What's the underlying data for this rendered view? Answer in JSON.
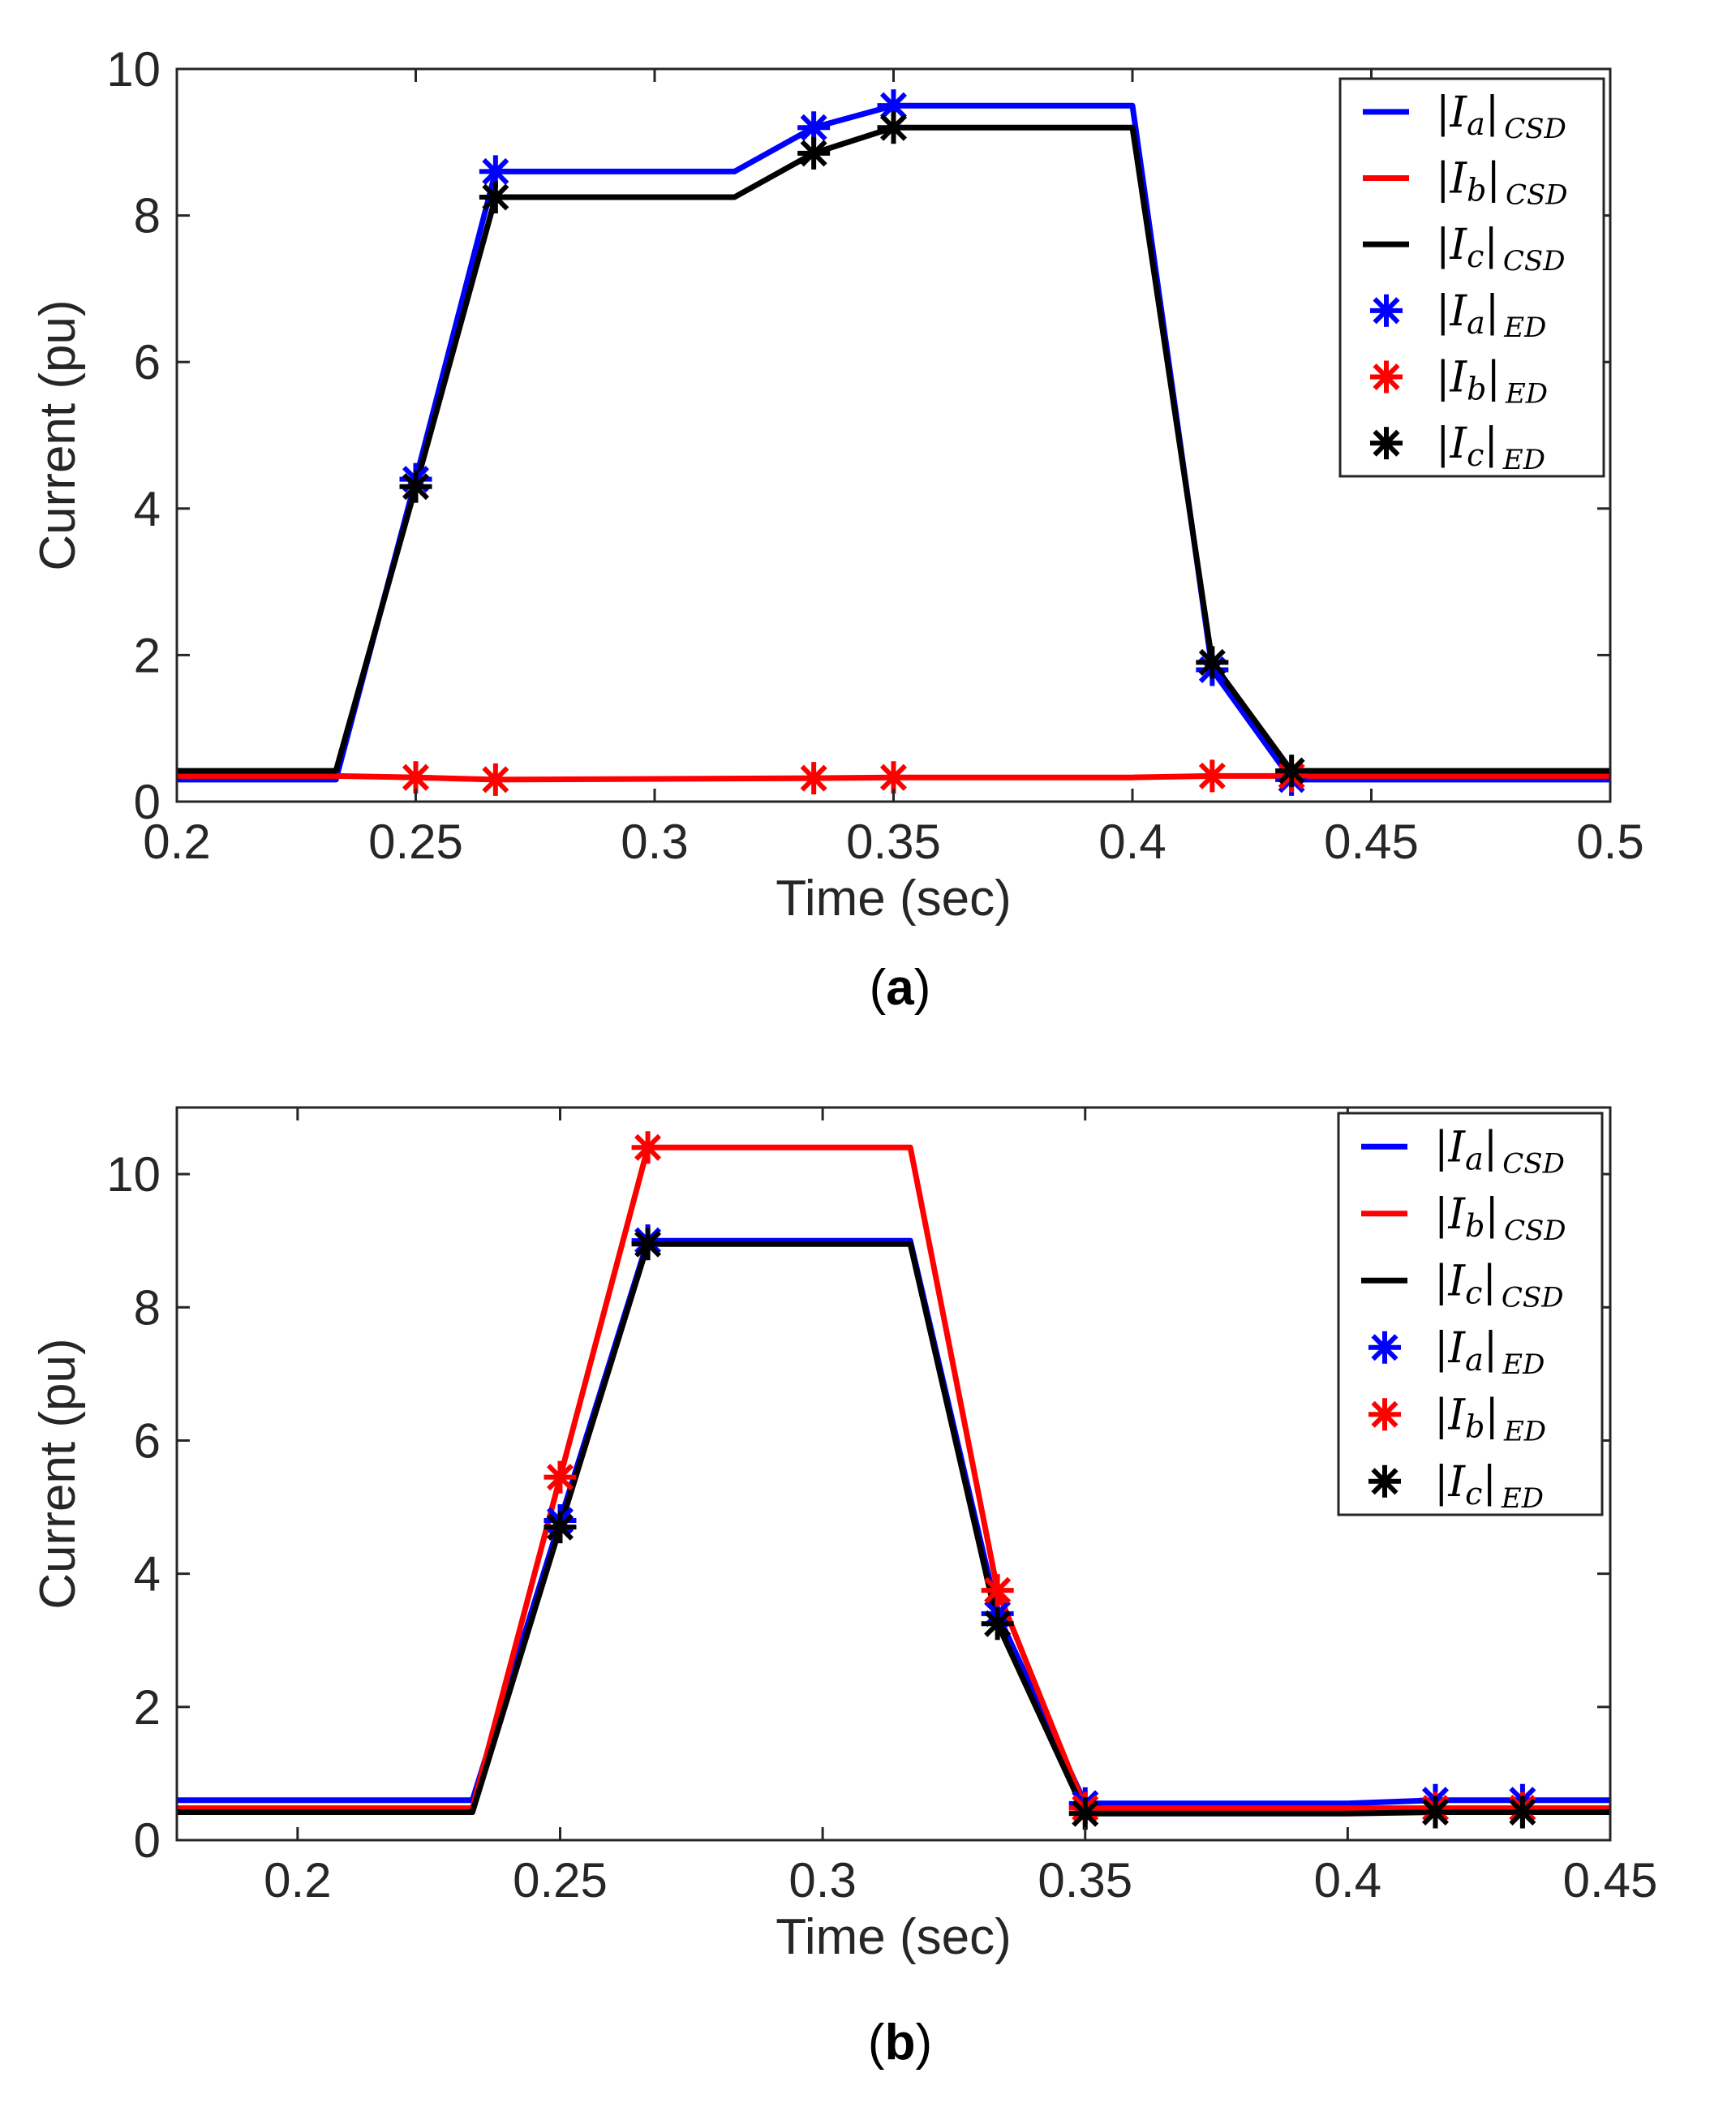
{
  "colors": {
    "Ia": "#0000FF",
    "Ib": "#FF0000",
    "Ic": "#000000"
  },
  "chart_data": [
    {
      "type": "line",
      "caption_label": "a",
      "xlabel": "Time (sec)",
      "ylabel": "Current (pu)",
      "xlim": [
        0.2,
        0.5
      ],
      "ylim": [
        0,
        10
      ],
      "xticks": [
        0.2,
        0.25,
        0.3,
        0.35,
        0.4,
        0.45,
        0.5
      ],
      "xtick_labels": [
        "0.2",
        "0.25",
        "0.3",
        "0.35",
        "0.4",
        "0.45",
        "0.5"
      ],
      "yticks": [
        0,
        2,
        4,
        6,
        8,
        10
      ],
      "ytick_labels": [
        "0",
        "2",
        "4",
        "6",
        "8",
        "10"
      ],
      "legend_position": "top-right",
      "series": [
        {
          "name": "|Ia|CSD",
          "phase": "a",
          "subscript": "CSD",
          "kind": "line",
          "color_key": "Ia",
          "x": [
            0.2,
            0.2333,
            0.25,
            0.2667,
            0.3167,
            0.3333,
            0.35,
            0.4,
            0.4167,
            0.4333,
            0.5
          ],
          "y": [
            0.3,
            0.3,
            4.4,
            8.6,
            8.6,
            9.2,
            9.5,
            9.5,
            1.8,
            0.3,
            0.3
          ]
        },
        {
          "name": "|Ib|CSD",
          "phase": "b",
          "subscript": "CSD",
          "kind": "line",
          "color_key": "Ib",
          "x": [
            0.2,
            0.2333,
            0.25,
            0.2667,
            0.3333,
            0.35,
            0.4,
            0.4167,
            0.4333,
            0.5
          ],
          "y": [
            0.35,
            0.35,
            0.33,
            0.3,
            0.32,
            0.33,
            0.33,
            0.35,
            0.35,
            0.35
          ]
        },
        {
          "name": "|Ic|CSD",
          "phase": "c",
          "subscript": "CSD",
          "kind": "line",
          "color_key": "Ic",
          "x": [
            0.2,
            0.2333,
            0.25,
            0.2667,
            0.3167,
            0.3333,
            0.35,
            0.4,
            0.4167,
            0.4333,
            0.5
          ],
          "y": [
            0.42,
            0.42,
            4.3,
            8.25,
            8.25,
            8.85,
            9.2,
            9.2,
            1.9,
            0.42,
            0.42
          ]
        },
        {
          "name": "|Ia|ED",
          "phase": "a",
          "subscript": "ED",
          "kind": "marker",
          "color_key": "Ia",
          "x": [
            0.25,
            0.2667,
            0.3333,
            0.35,
            0.4167,
            0.4333
          ],
          "y": [
            4.4,
            8.6,
            9.2,
            9.5,
            1.8,
            0.3
          ]
        },
        {
          "name": "|Ib|ED",
          "phase": "b",
          "subscript": "ED",
          "kind": "marker",
          "color_key": "Ib",
          "x": [
            0.25,
            0.2667,
            0.3333,
            0.35,
            0.4167,
            0.4333
          ],
          "y": [
            0.33,
            0.3,
            0.32,
            0.33,
            0.35,
            0.35
          ]
        },
        {
          "name": "|Ic|ED",
          "phase": "c",
          "subscript": "ED",
          "kind": "marker",
          "color_key": "Ic",
          "x": [
            0.25,
            0.2667,
            0.3333,
            0.35,
            0.4167,
            0.4333
          ],
          "y": [
            4.3,
            8.25,
            8.85,
            9.2,
            1.9,
            0.42
          ]
        }
      ]
    },
    {
      "type": "line",
      "caption_label": "b",
      "xlabel": "Time (sec)",
      "ylabel": "Current (pu)",
      "xlim": [
        0.177,
        0.45
      ],
      "ylim": [
        0,
        11
      ],
      "xticks": [
        0.2,
        0.25,
        0.3,
        0.35,
        0.4,
        0.45
      ],
      "xtick_labels": [
        "0.2",
        "0.25",
        "0.3",
        "0.35",
        "0.4",
        "0.45"
      ],
      "yticks": [
        0,
        2,
        4,
        6,
        8,
        10
      ],
      "ytick_labels": [
        "0",
        "2",
        "4",
        "6",
        "8",
        "10"
      ],
      "legend_position": "top-right",
      "series": [
        {
          "name": "|Ia|CSD",
          "phase": "a",
          "subscript": "CSD",
          "kind": "line",
          "color_key": "Ia",
          "x": [
            0.177,
            0.2333,
            0.25,
            0.2667,
            0.3167,
            0.3333,
            0.35,
            0.4,
            0.4167,
            0.4333,
            0.45
          ],
          "y": [
            0.6,
            0.6,
            4.8,
            9.0,
            9.0,
            3.4,
            0.55,
            0.55,
            0.6,
            0.6,
            0.6
          ]
        },
        {
          "name": "|Ib|CSD",
          "phase": "b",
          "subscript": "CSD",
          "kind": "line",
          "color_key": "Ib",
          "x": [
            0.177,
            0.2333,
            0.25,
            0.2667,
            0.3167,
            0.3333,
            0.35,
            0.4,
            0.4167,
            0.4333,
            0.45
          ],
          "y": [
            0.48,
            0.48,
            5.45,
            10.4,
            10.4,
            3.75,
            0.48,
            0.48,
            0.48,
            0.48,
            0.48
          ]
        },
        {
          "name": "|Ic|CSD",
          "phase": "c",
          "subscript": "CSD",
          "kind": "line",
          "color_key": "Ic",
          "x": [
            0.177,
            0.2333,
            0.25,
            0.2667,
            0.3167,
            0.3333,
            0.35,
            0.4,
            0.4167,
            0.4333,
            0.45
          ],
          "y": [
            0.42,
            0.42,
            4.7,
            8.95,
            8.95,
            3.25,
            0.4,
            0.4,
            0.42,
            0.42,
            0.42
          ]
        },
        {
          "name": "|Ia|ED",
          "phase": "a",
          "subscript": "ED",
          "kind": "marker",
          "color_key": "Ia",
          "x": [
            0.25,
            0.2667,
            0.3333,
            0.35,
            0.4167,
            0.4333
          ],
          "y": [
            4.8,
            9.0,
            3.4,
            0.55,
            0.6,
            0.6
          ]
        },
        {
          "name": "|Ib|ED",
          "phase": "b",
          "subscript": "ED",
          "kind": "marker",
          "color_key": "Ib",
          "x": [
            0.25,
            0.2667,
            0.3333,
            0.35,
            0.4167,
            0.4333
          ],
          "y": [
            5.45,
            10.4,
            3.75,
            0.48,
            0.48,
            0.48
          ]
        },
        {
          "name": "|Ic|ED",
          "phase": "c",
          "subscript": "ED",
          "kind": "marker",
          "color_key": "Ic",
          "x": [
            0.25,
            0.2667,
            0.3333,
            0.35,
            0.4167,
            0.4333
          ],
          "y": [
            4.7,
            8.95,
            3.25,
            0.4,
            0.42,
            0.42
          ]
        }
      ]
    }
  ]
}
